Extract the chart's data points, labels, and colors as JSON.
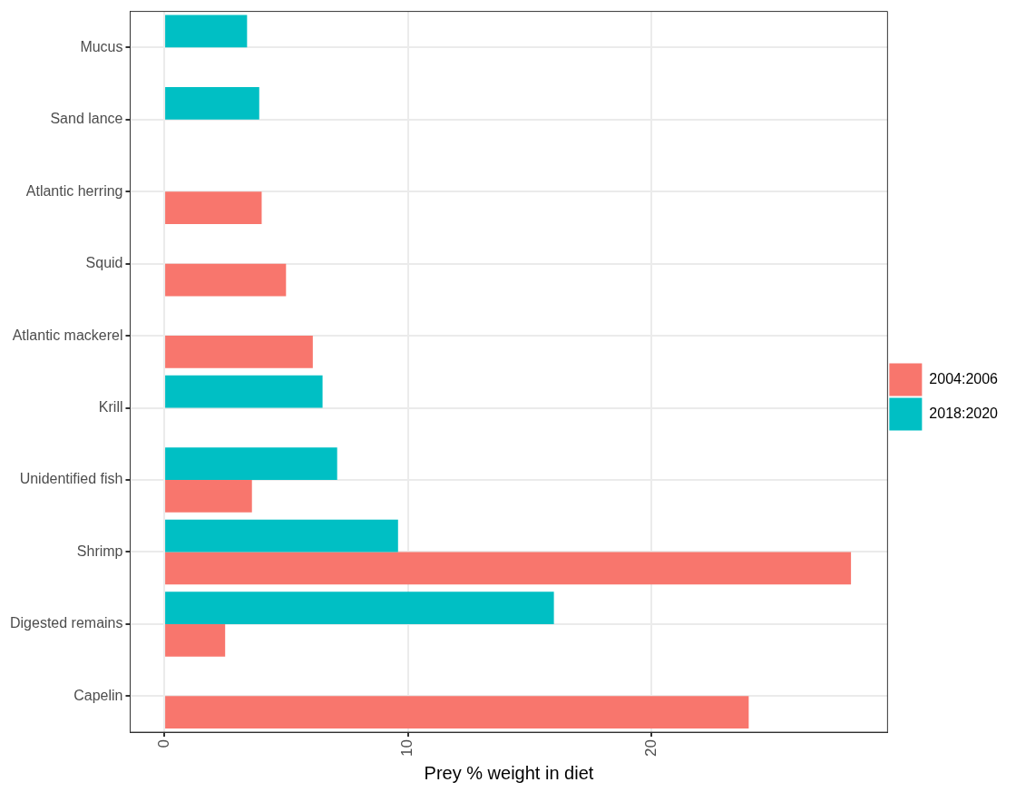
{
  "chart_data": {
    "type": "bar",
    "orientation": "horizontal",
    "xlabel": "Prey % weight in diet",
    "categories": [
      "Mucus",
      "Sand lance",
      "Atlantic herring",
      "Squid",
      "Atlantic mackerel",
      "Krill",
      "Unidentified fish",
      "Shrimp",
      "Digested remains",
      "Capelin"
    ],
    "series": [
      {
        "name": "2004:2006",
        "color": "#f8766d",
        "values": [
          null,
          null,
          4.0,
          5.0,
          6.1,
          null,
          3.6,
          28.2,
          2.5,
          24.0
        ]
      },
      {
        "name": "2018:2020",
        "color": "#00bfc4",
        "values": [
          3.4,
          3.9,
          null,
          null,
          null,
          6.5,
          7.1,
          9.6,
          16.0,
          null
        ]
      }
    ],
    "xlim": [
      -1.4,
      29.7
    ],
    "xticks": [
      0,
      10,
      20
    ],
    "grid": true,
    "legend": "right"
  }
}
